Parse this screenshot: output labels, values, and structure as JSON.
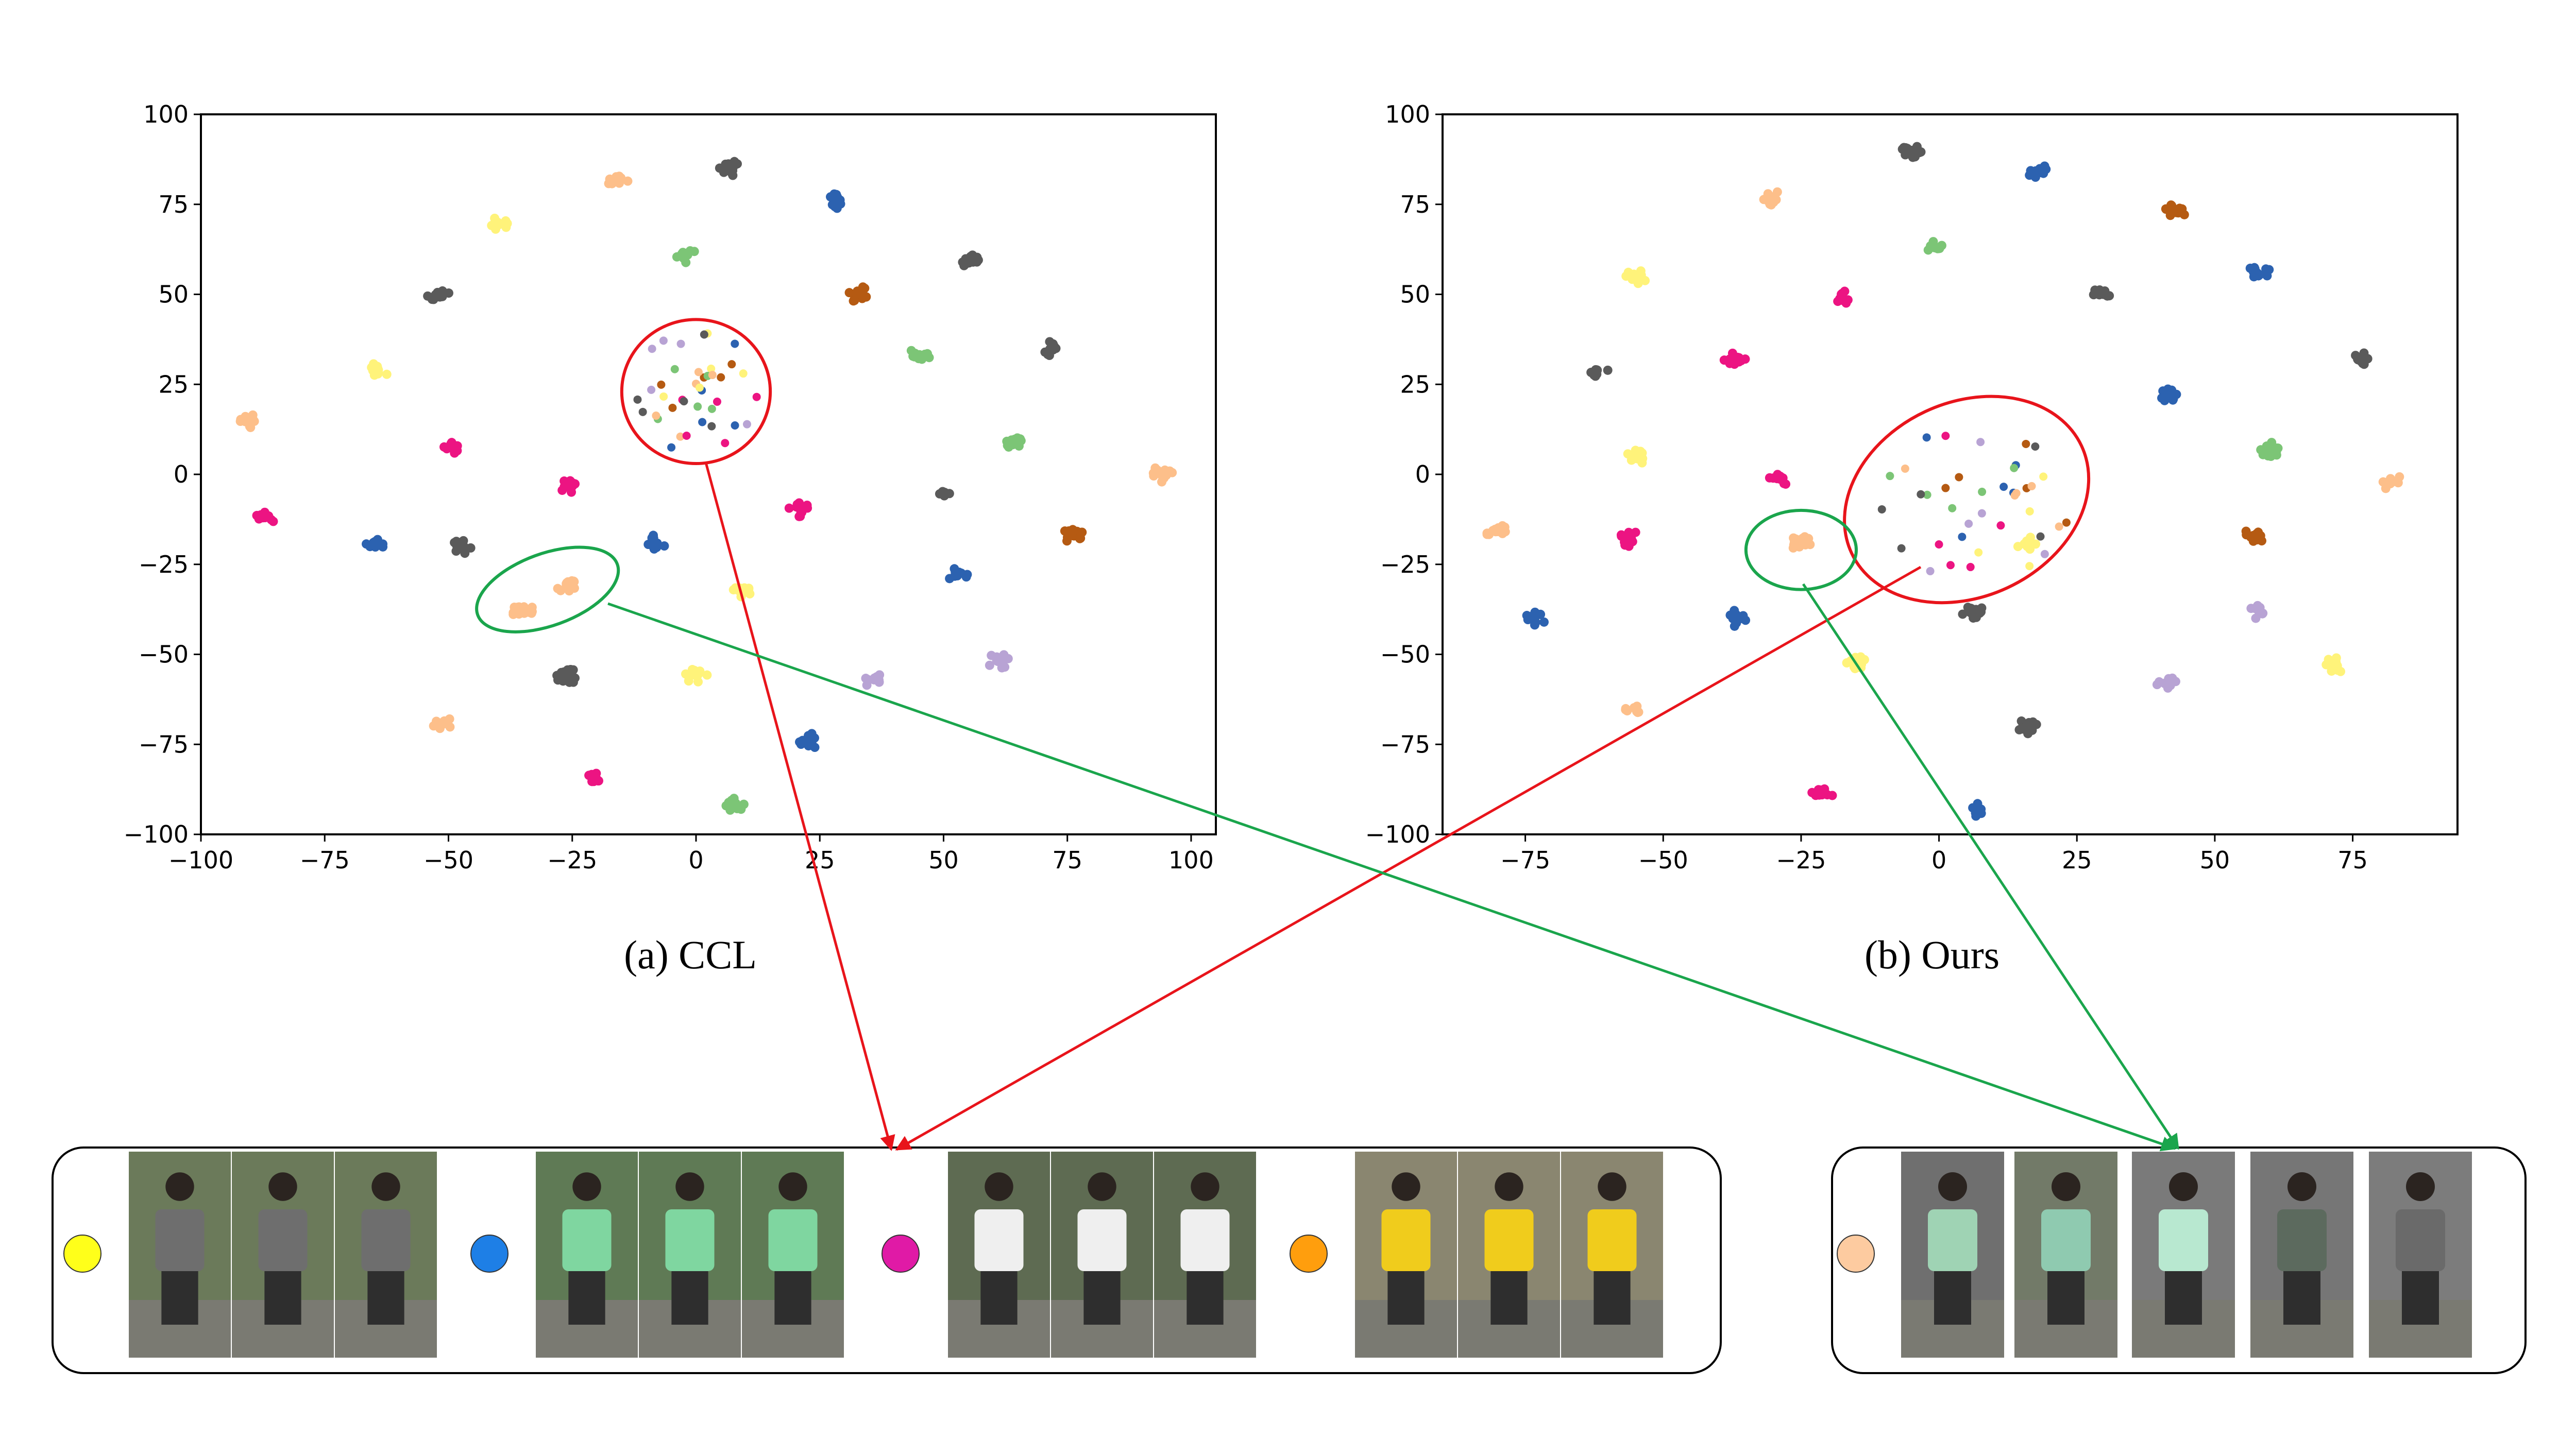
{
  "figure": {
    "captions": {
      "a": "(a) CCL",
      "b": "(b) Ours"
    },
    "arrow_colors": {
      "red": "#e8141b",
      "green": "#1aa54c"
    },
    "identity_colors": [
      {
        "name": "yellow",
        "hex": "#ffff1a"
      },
      {
        "name": "blue",
        "hex": "#1e7fe6"
      },
      {
        "name": "magenta",
        "hex": "#e01aa6"
      },
      {
        "name": "orange",
        "hex": "#ff9e0d"
      },
      {
        "name": "peach",
        "hex": "#fdcba0"
      }
    ],
    "person_strip_left": [
      {
        "identity": "yellow",
        "crops": 3,
        "shirt": "#6e6e6e",
        "bg": "#6b7a5a"
      },
      {
        "identity": "blue",
        "crops": 3,
        "shirt": "#7fd6a0",
        "bg": "#5f7a55"
      },
      {
        "identity": "magenta",
        "crops": 3,
        "shirt": "#efefef",
        "bg": "#5e6b52"
      },
      {
        "identity": "orange",
        "crops": 3,
        "shirt": "#f0cc1c",
        "bg": "#8a8670"
      }
    ],
    "person_strip_right": [
      {
        "shirt": "#9fd3b4",
        "bg": "#6f6f6f"
      },
      {
        "shirt": "#8fcab0",
        "bg": "#727a68"
      },
      {
        "shirt": "#b8e8d0",
        "bg": "#7a7a7a"
      },
      {
        "shirt": "#5c6a5e",
        "bg": "#767676"
      },
      {
        "shirt": "#6a6a6a",
        "bg": "#7c7c7c"
      }
    ]
  },
  "chart_data": [
    {
      "type": "scatter",
      "title": "(a) CCL",
      "xlim": [
        -100,
        105
      ],
      "ylim": [
        -100,
        100
      ],
      "xticks": [
        -100,
        -75,
        -50,
        -25,
        0,
        25,
        50,
        75,
        100
      ],
      "yticks": [
        100,
        75,
        50,
        25,
        0,
        -25,
        -50,
        -75,
        -100
      ],
      "clusters": [
        {
          "x": -16,
          "y": 82,
          "color": "#fdbf8a"
        },
        {
          "x": 7,
          "y": 85,
          "color": "#5a5a5a"
        },
        {
          "x": 28,
          "y": 76,
          "color": "#2c62b0"
        },
        {
          "x": -40,
          "y": 70,
          "color": "#fff37a"
        },
        {
          "x": -2,
          "y": 61,
          "color": "#7cc576"
        },
        {
          "x": 56,
          "y": 59,
          "color": "#5a5a5a"
        },
        {
          "x": -52,
          "y": 50,
          "color": "#5a5a5a"
        },
        {
          "x": 33,
          "y": 50,
          "color": "#b55a12"
        },
        {
          "x": -64,
          "y": 29,
          "color": "#fff37a"
        },
        {
          "x": 72,
          "y": 35,
          "color": "#5a5a5a"
        },
        {
          "x": 45,
          "y": 33,
          "color": "#7cc576"
        },
        {
          "x": -90,
          "y": 15,
          "color": "#fdbf8a"
        },
        {
          "x": -49,
          "y": 8,
          "color": "#ec1482"
        },
        {
          "x": 64,
          "y": 9,
          "color": "#7cc576"
        },
        {
          "x": -26,
          "y": -3,
          "color": "#ec1482"
        },
        {
          "x": 94,
          "y": 0,
          "color": "#fdbf8a"
        },
        {
          "x": 21,
          "y": -10,
          "color": "#ec1482"
        },
        {
          "x": 50,
          "y": -5,
          "color": "#5a5a5a"
        },
        {
          "x": -87,
          "y": -12,
          "color": "#ec1482"
        },
        {
          "x": 76,
          "y": -17,
          "color": "#b55a12"
        },
        {
          "x": -65,
          "y": -19,
          "color": "#2c62b0"
        },
        {
          "x": -47,
          "y": -20,
          "color": "#5a5a5a"
        },
        {
          "x": -8,
          "y": -19,
          "color": "#2c62b0"
        },
        {
          "x": 53,
          "y": -28,
          "color": "#2c62b0"
        },
        {
          "x": 9,
          "y": -32,
          "color": "#fff37a"
        },
        {
          "x": -35,
          "y": -38,
          "color": "#fdbf8a"
        },
        {
          "x": -26,
          "y": -31,
          "color": "#fdbf8a"
        },
        {
          "x": 61,
          "y": -52,
          "color": "#b8a3d4"
        },
        {
          "x": 0,
          "y": -56,
          "color": "#fff37a"
        },
        {
          "x": 36,
          "y": -57,
          "color": "#b8a3d4"
        },
        {
          "x": -26,
          "y": -56,
          "color": "#5a5a5a"
        },
        {
          "x": -51,
          "y": -69,
          "color": "#fdbf8a"
        },
        {
          "x": 23,
          "y": -74,
          "color": "#2c62b0"
        },
        {
          "x": -20,
          "y": -85,
          "color": "#ec1482"
        },
        {
          "x": 8,
          "y": -92,
          "color": "#7cc576"
        }
      ],
      "annotations": [
        {
          "shape": "ellipse",
          "color": "red",
          "cx": 0,
          "cy": 23,
          "rx": 15,
          "ry": 20
        },
        {
          "shape": "ellipse",
          "color": "green",
          "cx": -30,
          "cy": -32,
          "rx": 15,
          "ry": 10
        }
      ]
    },
    {
      "type": "scatter",
      "title": "(b) Ours",
      "xlim": [
        -90,
        94
      ],
      "ylim": [
        -100,
        100
      ],
      "xticks": [
        -75,
        -50,
        -25,
        0,
        25,
        50,
        75
      ],
      "yticks": [
        100,
        75,
        50,
        25,
        0,
        -25,
        -50,
        -75,
        -100
      ],
      "clusters": [
        {
          "x": -5,
          "y": 90,
          "color": "#5a5a5a"
        },
        {
          "x": 18,
          "y": 84,
          "color": "#2c62b0"
        },
        {
          "x": -30,
          "y": 77,
          "color": "#fdbf8a"
        },
        {
          "x": 43,
          "y": 73,
          "color": "#b55a12"
        },
        {
          "x": 0,
          "y": 63,
          "color": "#7cc576"
        },
        {
          "x": -55,
          "y": 55,
          "color": "#fff37a"
        },
        {
          "x": -18,
          "y": 49,
          "color": "#ec1482"
        },
        {
          "x": 30,
          "y": 50,
          "color": "#5a5a5a"
        },
        {
          "x": 58,
          "y": 56,
          "color": "#2c62b0"
        },
        {
          "x": -37,
          "y": 32,
          "color": "#ec1482"
        },
        {
          "x": -62,
          "y": 29,
          "color": "#5a5a5a"
        },
        {
          "x": 76,
          "y": 32,
          "color": "#5a5a5a"
        },
        {
          "x": 42,
          "y": 22,
          "color": "#2c62b0"
        },
        {
          "x": -55,
          "y": 5,
          "color": "#fff37a"
        },
        {
          "x": -29,
          "y": -1,
          "color": "#ec1482"
        },
        {
          "x": 60,
          "y": 7,
          "color": "#7cc576"
        },
        {
          "x": 82,
          "y": -2,
          "color": "#fdbf8a"
        },
        {
          "x": -80,
          "y": -16,
          "color": "#fdbf8a"
        },
        {
          "x": -56,
          "y": -18,
          "color": "#ec1482"
        },
        {
          "x": 16,
          "y": -19,
          "color": "#fff37a"
        },
        {
          "x": 57,
          "y": -17,
          "color": "#b55a12"
        },
        {
          "x": -25,
          "y": -19,
          "color": "#fdbf8a"
        },
        {
          "x": 6,
          "y": -38,
          "color": "#5a5a5a"
        },
        {
          "x": 58,
          "y": -38,
          "color": "#b8a3d4"
        },
        {
          "x": -73,
          "y": -40,
          "color": "#2c62b0"
        },
        {
          "x": -37,
          "y": -40,
          "color": "#2c62b0"
        },
        {
          "x": -15,
          "y": -52,
          "color": "#fff37a"
        },
        {
          "x": 41,
          "y": -58,
          "color": "#b8a3d4"
        },
        {
          "x": -55,
          "y": -65,
          "color": "#fdbf8a"
        },
        {
          "x": 16,
          "y": -70,
          "color": "#5a5a5a"
        },
        {
          "x": -21,
          "y": -88,
          "color": "#ec1482"
        },
        {
          "x": 7,
          "y": -93,
          "color": "#2c62b0"
        },
        {
          "x": 72,
          "y": -53,
          "color": "#fff37a"
        }
      ],
      "annotations": [
        {
          "shape": "ellipse",
          "color": "red",
          "cx": 5,
          "cy": -7,
          "rx": 23,
          "ry": 27
        },
        {
          "shape": "ellipse",
          "color": "green",
          "cx": -25,
          "cy": -21,
          "rx": 10,
          "ry": 11
        }
      ]
    }
  ]
}
